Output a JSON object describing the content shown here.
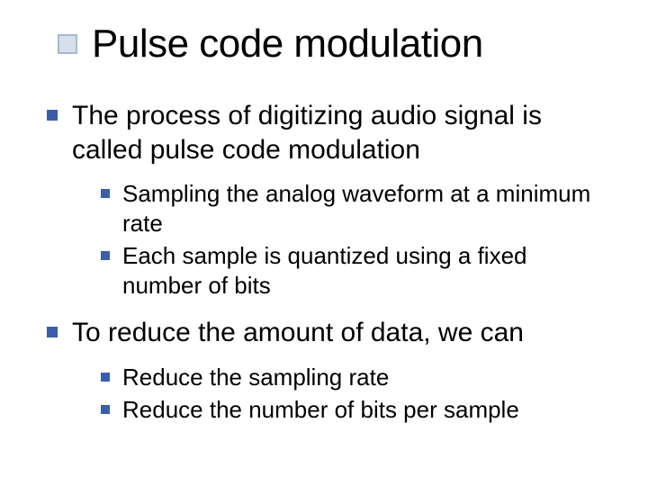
{
  "colors": {
    "background": "#ffffff",
    "textColor": "#000000",
    "titleBulletFill": "#d6e0ec",
    "titleBulletBorder": "#a8b8d0",
    "bulletColor": "#3a5fa8"
  },
  "typography": {
    "fontFamily": "Arial, Helvetica, sans-serif",
    "titleFontSize": 44,
    "level1FontSize": 30,
    "level2FontSize": 26
  },
  "title": "Pulse code modulation",
  "body": {
    "items": [
      {
        "text": "The process of digitizing audio signal is called pulse code modulation",
        "sub": [
          {
            "text": "Sampling the analog waveform at a minimum rate"
          },
          {
            "text": "Each sample is quantized using a fixed number of bits"
          }
        ]
      },
      {
        "text": "To reduce the amount of data, we can",
        "sub": [
          {
            "text": "Reduce the sampling rate"
          },
          {
            "text": "Reduce the number of bits per sample"
          }
        ]
      }
    ]
  }
}
